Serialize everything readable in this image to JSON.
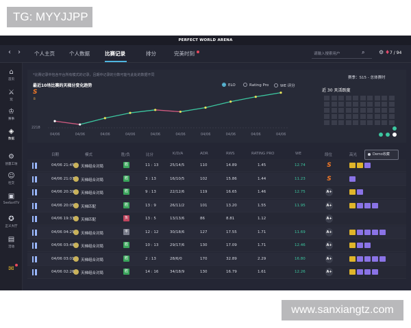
{
  "watermark_top": "TG: MYYJJPP",
  "watermark_bottom": "www.sanxiangtz.com",
  "app_title": "PERFECT WORLD ARENA",
  "nav": {
    "back": "‹",
    "forward": "›",
    "tabs": [
      "个人主页",
      "个人数据",
      "比赛记录",
      "排分",
      "完美时刻"
    ],
    "active_tab": "比赛记录",
    "search_placeholder": "请输入搜索用户",
    "points": "7 / 94"
  },
  "sidebar": [
    {
      "icon": "home-icon",
      "glyph": "⌂",
      "label": "首页"
    },
    {
      "icon": "gun-icon",
      "glyph": "⚔",
      "label": "玩"
    },
    {
      "icon": "trophy-icon",
      "glyph": "♔",
      "label": "赛事"
    },
    {
      "icon": "data-icon",
      "glyph": "◈",
      "label": "数据"
    },
    {
      "icon": "workshop-icon",
      "glyph": "⚙",
      "label": "创意工坊"
    },
    {
      "icon": "social-icon",
      "glyph": "☺",
      "label": "社交"
    },
    {
      "icon": "tv-icon",
      "glyph": "▣",
      "label": "5eeSortTV"
    },
    {
      "icon": "guild-icon",
      "glyph": "✪",
      "label": "正义大厅"
    },
    {
      "icon": "event-icon",
      "glyph": "▤",
      "label": "活动"
    },
    {
      "icon": "gift-icon",
      "glyph": "✉",
      "label": ""
    }
  ],
  "chart_panel": {
    "note": "*比赛记录中包含平台所有模式的记录，且期中记录的分数可能与此处的数据不同",
    "title": "最近10场比赛的天梯分变化趋势",
    "rank_badge": "S",
    "rank_sub": "B",
    "legend": [
      {
        "label": "ELO",
        "selected": true
      },
      {
        "label": "Rating Pro",
        "selected": false
      },
      {
        "label": "WE 评分",
        "selected": false
      }
    ],
    "season_select": "赛季：S15 - 总体赛时",
    "recent_title": "近 30 天活跃度"
  },
  "chart_data": {
    "type": "line",
    "title": "最近10场比赛的天梯分变化趋势",
    "x": [
      "04/06",
      "04/06",
      "04/06",
      "04/06",
      "04/06",
      "04/06",
      "04/06",
      "04/06",
      "04/06",
      "04/06"
    ],
    "y_min_label": "2218",
    "series": [
      {
        "name": "ELO",
        "values": [
          2231,
          2222,
          2239,
          2253,
          2261,
          2256,
          2267,
          2283,
          2296,
          2307
        ]
      }
    ],
    "ylim": [
      2215,
      2310
    ],
    "grid": false
  },
  "table": {
    "headers": [
      "日期",
      "模式",
      "胜/负",
      "比分",
      "K/D/A",
      "ADR",
      "RWS",
      "RATING PRO",
      "WE",
      "段位",
      "高光"
    ],
    "demo_button": "Demo收藏",
    "rows": [
      {
        "date": "04/06 21:45",
        "mode": "天梯组合对局",
        "result": "胜",
        "score": "11 : 13",
        "kda": "25/14/5",
        "adr": "110",
        "rws": "14.89",
        "rating": "1.45",
        "we": "12.74",
        "rank": "S",
        "highlights": [
          "#e0b52a",
          "#e0b52a",
          "#8a73e6"
        ]
      },
      {
        "date": "04/06 21:07",
        "mode": "天梯组合对局",
        "result": "胜",
        "score": "3 : 13",
        "kda": "16/10/5",
        "adr": "102",
        "rws": "15.86",
        "rating": "1.44",
        "we": "11.23",
        "rank": "S",
        "highlights": [
          "#8a73e6"
        ]
      },
      {
        "date": "04/06 20:39",
        "mode": "天梯组合对局",
        "result": "胜",
        "score": "9 : 13",
        "kda": "22/12/6",
        "adr": "119",
        "rws": "16.65",
        "rating": "1.46",
        "we": "12.75",
        "rank": "A+",
        "highlights": [
          "#e0b52a",
          "#8a73e6"
        ]
      },
      {
        "date": "04/06 20:05",
        "mode": "天梯匹配",
        "result": "胜",
        "score": "13 : 9",
        "kda": "26/11/2",
        "adr": "101",
        "rws": "13.20",
        "rating": "1.55",
        "we": "11.95",
        "rank": "A+",
        "highlights": [
          "#e0b52a",
          "#8a73e6",
          "#8a73e6",
          "#8a73e6"
        ]
      },
      {
        "date": "04/06 19:33",
        "mode": "天梯匹配",
        "result": "负",
        "score": "13 : 5",
        "kda": "13/13/6",
        "adr": "86",
        "rws": "8.81",
        "rating": "1.12",
        "we": "",
        "rank": "A+",
        "highlights": []
      },
      {
        "date": "04/06 04:25",
        "mode": "天梯组合对局",
        "result": "平",
        "score": "12 : 12",
        "kda": "30/18/6",
        "adr": "127",
        "rws": "17.55",
        "rating": "1.71",
        "we": "11.69",
        "rank": "A+",
        "highlights": [
          "#e0b52a",
          "#8a73e6",
          "#8a73e6",
          "#8a73e6",
          "#8a73e6"
        ]
      },
      {
        "date": "04/06 03:48",
        "mode": "天梯组合对局",
        "result": "胜",
        "score": "10 : 13",
        "kda": "29/17/6",
        "adr": "130",
        "rws": "17.09",
        "rating": "1.71",
        "we": "12.46",
        "rank": "A+",
        "highlights": [
          "#e0b52a",
          "#8a73e6",
          "#8a73e6"
        ]
      },
      {
        "date": "04/06 03:01",
        "mode": "天梯组合对局",
        "result": "胜",
        "score": "2 : 13",
        "kda": "28/6/0",
        "adr": "170",
        "rws": "32.89",
        "rating": "2.29",
        "we": "16.80",
        "rank": "A+",
        "highlights": [
          "#e0b52a",
          "#8a73e6",
          "#8a73e6",
          "#8a73e6",
          "#8a73e6"
        ]
      },
      {
        "date": "04/06 02:26",
        "mode": "天梯组合对局",
        "result": "胜",
        "score": "14 : 16",
        "kda": "34/18/9",
        "adr": "130",
        "rws": "16.79",
        "rating": "1.61",
        "we": "12.26",
        "rank": "A+",
        "highlights": [
          "#e0b52a",
          "#8a73e6",
          "#8a73e6",
          "#8a73e6"
        ]
      }
    ]
  },
  "colors": {
    "win": "#3aa55b",
    "loss": "#c0455e",
    "draw": "#7b7e8c",
    "accent": "#4fb5e0"
  }
}
